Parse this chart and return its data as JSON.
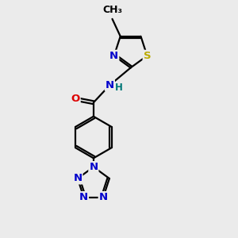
{
  "bg_color": "#ebebeb",
  "bond_color": "#000000",
  "bond_width": 1.6,
  "atom_colors": {
    "N": "#0000cc",
    "O": "#dd0000",
    "S": "#bbaa00",
    "H": "#007777"
  },
  "font_size": 9.5,
  "font_size_methyl": 9
}
